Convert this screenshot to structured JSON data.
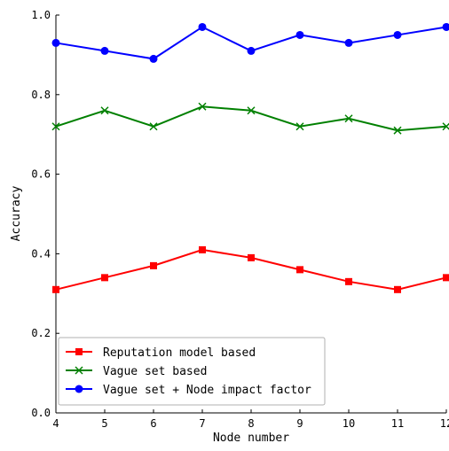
{
  "chart_data": {
    "type": "line",
    "title": "",
    "xlabel": "Node number",
    "ylabel": "Accuracy",
    "x": [
      4,
      5,
      6,
      7,
      8,
      9,
      10,
      11,
      12
    ],
    "xticks": [
      "4",
      "5",
      "6",
      "7",
      "8",
      "9",
      "10",
      "11",
      "12"
    ],
    "yticks": [
      "0.0",
      "0.2",
      "0.4",
      "0.6",
      "0.8",
      "1.0"
    ],
    "xlim": [
      4,
      12
    ],
    "ylim": [
      0.0,
      1.0
    ],
    "grid": false,
    "legend_position": "bottom-left",
    "series": [
      {
        "name": "Reputation model based",
        "color": "#ff0000",
        "marker": "square",
        "values": [
          0.31,
          0.34,
          0.37,
          0.41,
          0.39,
          0.36,
          0.33,
          0.31,
          0.34
        ]
      },
      {
        "name": "Vague set based",
        "color": "#008000",
        "marker": "x",
        "values": [
          0.72,
          0.76,
          0.72,
          0.77,
          0.76,
          0.72,
          0.74,
          0.71,
          0.72
        ]
      },
      {
        "name": "Vague set + Node impact factor",
        "color": "#0000ff",
        "marker": "circle",
        "values": [
          0.93,
          0.91,
          0.89,
          0.97,
          0.91,
          0.95,
          0.93,
          0.95,
          0.97
        ]
      }
    ]
  }
}
